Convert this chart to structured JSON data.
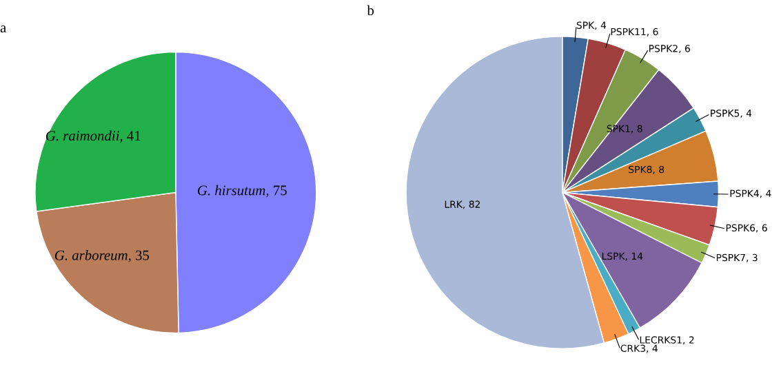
{
  "chart_data": [
    {
      "type": "pie",
      "title": "a",
      "categories": [
        "G. hirsutum",
        "G. arboreum",
        "G. raimondii"
      ],
      "values": [
        75,
        35,
        41
      ],
      "colors": [
        "#8080ff",
        "#b97d5a",
        "#22b04b"
      ],
      "value_labels": [
        ", 75",
        ", 35",
        ", 41"
      ]
    },
    {
      "type": "pie",
      "title": "b",
      "categories": [
        "SPK",
        "PSPK11",
        "PSPK2",
        "SPK1",
        "PSPK5",
        "SPK8",
        "PSPK4",
        "PSPK6",
        "PSPK7",
        "LSPK",
        "LECRKS1",
        "CRK3",
        "LRK"
      ],
      "values": [
        4,
        6,
        6,
        8,
        4,
        8,
        4,
        6,
        3,
        14,
        2,
        4,
        82
      ],
      "colors": [
        "#3e6797",
        "#a0403e",
        "#7f9a48",
        "#664f83",
        "#3a8fa3",
        "#d07f2f",
        "#4f7fbf",
        "#c0504d",
        "#9bbb59",
        "#8064a2",
        "#4bacc6",
        "#f79646",
        "#aab9d8"
      ],
      "value_labels": [
        ", 4",
        ", 6",
        ", 6",
        ", 8",
        ", 4",
        ", 8",
        ", 4",
        ", 6",
        ", 3",
        ", 14",
        ", 2",
        ", 4",
        ", 82"
      ]
    }
  ]
}
